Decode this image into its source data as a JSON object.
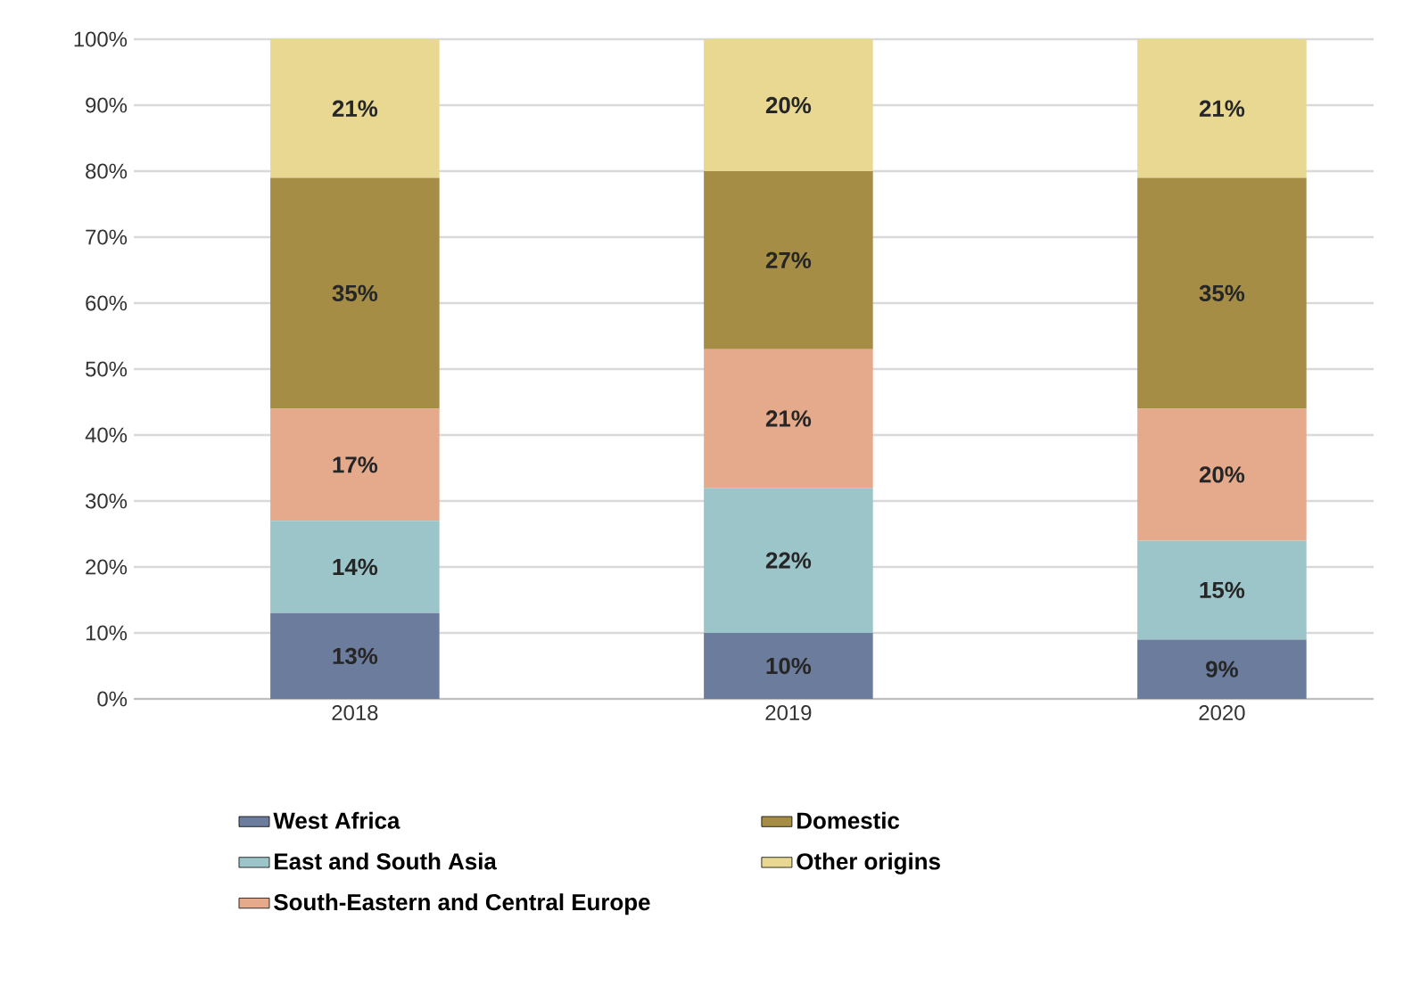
{
  "chart_data": {
    "type": "bar",
    "stacked": true,
    "categories": [
      "2018",
      "2019",
      "2020"
    ],
    "series": [
      {
        "name": "West Africa",
        "color": "#6b7c9c",
        "values": [
          13,
          10,
          9
        ],
        "value_labels": [
          "13%",
          "10%",
          "9%"
        ]
      },
      {
        "name": "East and South Asia",
        "color": "#9cc5c9",
        "values": [
          14,
          22,
          15
        ],
        "value_labels": [
          "14%",
          "22%",
          "15%"
        ]
      },
      {
        "name": "South-Eastern and Central Europe",
        "color": "#e5a98c",
        "values": [
          17,
          21,
          20
        ],
        "value_labels": [
          "17%",
          "21%",
          "20%"
        ]
      },
      {
        "name": "Domestic",
        "color": "#a58d45",
        "values": [
          35,
          27,
          35
        ],
        "value_labels": [
          "35%",
          "27%",
          "35%"
        ]
      },
      {
        "name": "Other origins",
        "color": "#e8d891",
        "values": [
          21,
          20,
          21
        ],
        "value_labels": [
          "21%",
          "20%",
          "21%"
        ]
      }
    ],
    "ylim": [
      0,
      100
    ],
    "yticks": [
      {
        "value": 0,
        "label": "0%"
      },
      {
        "value": 10,
        "label": "10%"
      },
      {
        "value": 20,
        "label": "20%"
      },
      {
        "value": 30,
        "label": "30%"
      },
      {
        "value": 40,
        "label": "40%"
      },
      {
        "value": 50,
        "label": "50%"
      },
      {
        "value": 60,
        "label": "60%"
      },
      {
        "value": 70,
        "label": "70%"
      },
      {
        "value": 80,
        "label": "80%"
      },
      {
        "value": 90,
        "label": "90%"
      },
      {
        "value": 100,
        "label": "100%"
      }
    ],
    "grid": "y",
    "legend": "bottom"
  }
}
